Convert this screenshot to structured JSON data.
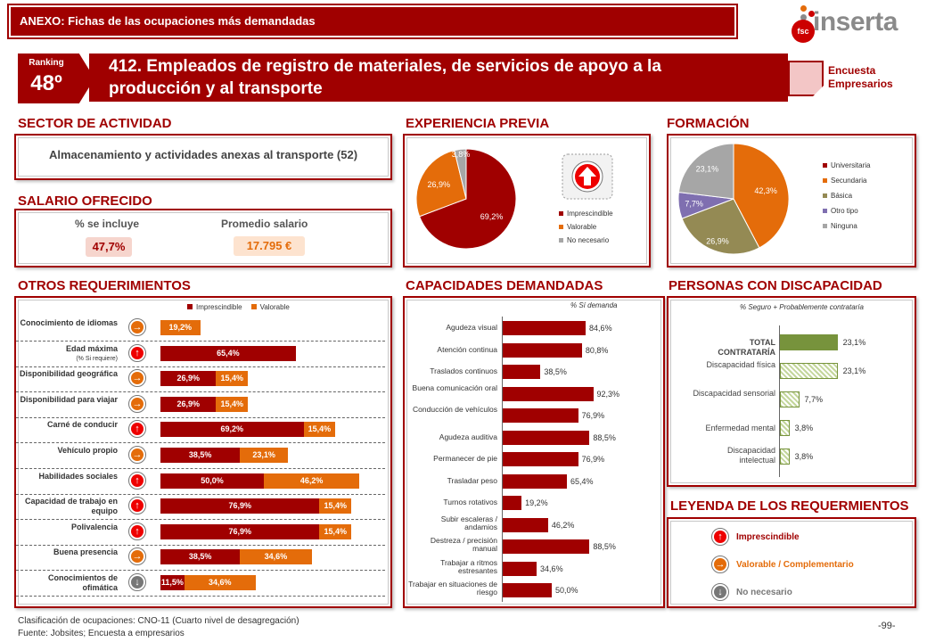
{
  "header": {
    "title": "ANEXO: Fichas de las ocupaciones más demandadas"
  },
  "logo": {
    "text": "inserta",
    "badge": "fsc"
  },
  "ranking": {
    "label": "Ranking",
    "value": "48º"
  },
  "occupation": {
    "title": "412. Empleados de registro de materiales, de servicios de apoyo a la producción y al transporte"
  },
  "survey_badge": {
    "line1": "Encuesta",
    "line2": "Empresarios"
  },
  "sections": {
    "sector": "SECTOR DE ACTIVIDAD",
    "experience": "EXPERIENCIA PREVIA",
    "training": "FORMACIÓN",
    "salary": "SALARIO OFRECIDO",
    "other_req": "OTROS REQUERIMIENTOS",
    "capacities": "CAPACIDADES DEMANDADAS",
    "disability": "PERSONAS CON DISCAPACIDAD",
    "legend": "LEYENDA DE LOS REQUERMIENTOS"
  },
  "sector": {
    "text": "Almacenamiento y actividades anexas al transporte (52)"
  },
  "salary": {
    "included_label": "% se incluye",
    "included_value": "47,7%",
    "avg_label": "Promedio salario",
    "avg_value": "17.795 €"
  },
  "colors": {
    "dark_red": "#a00000",
    "orange": "#e46c0a",
    "grey": "#a6a6a6",
    "olive": "#948a54",
    "purple": "#7f6fb0",
    "green": "#77933c"
  },
  "chart_data": [
    {
      "type": "pie",
      "title": "EXPERIENCIA PREVIA",
      "categories": [
        "Imprescindible",
        "Valorable",
        "No necesario"
      ],
      "values": [
        69.2,
        26.9,
        3.8
      ],
      "labels": [
        "69,2%",
        "26,9%",
        "3,8%"
      ],
      "colors": [
        "#a00000",
        "#e46c0a",
        "#a6a6a6"
      ]
    },
    {
      "type": "pie",
      "title": "FORMACIÓN",
      "categories": [
        "Universitaria",
        "Secundaria",
        "Básica",
        "Otro tipo",
        "Ninguna"
      ],
      "values": [
        0,
        42.3,
        26.9,
        7.7,
        23.1
      ],
      "labels": [
        "",
        "42,3%",
        "26,9%",
        "7,7%",
        "23,1%"
      ],
      "colors": [
        "#a00000",
        "#e46c0a",
        "#948a54",
        "#7f6fb0",
        "#a6a6a6"
      ]
    },
    {
      "type": "bar",
      "title": "OTROS REQUERIMIENTOS",
      "legend": [
        "Imprescindible",
        "Valorable"
      ],
      "categories": [
        "Conocimiento de idiomas",
        "Edad máxima",
        "Disponibilidad geográfica",
        "Disponibilidad para viajar",
        "Carné de conducir",
        "Vehículo propio",
        "Habilidades sociales",
        "Capacidad de trabajo en equipo",
        "Polivalencia",
        "Buena presencia",
        "Conocimientos de ofimática"
      ],
      "series": [
        {
          "name": "Imprescindible",
          "values": [
            0,
            65.4,
            26.9,
            26.9,
            69.2,
            38.5,
            50.0,
            76.9,
            76.9,
            38.5,
            11.5
          ],
          "labels": [
            "",
            "65,4%",
            "26,9%",
            "26,9%",
            "69,2%",
            "38,5%",
            "50,0%",
            "76,9%",
            "76,9%",
            "38,5%",
            "11,5%"
          ]
        },
        {
          "name": "Valorable",
          "values": [
            19.2,
            0,
            15.4,
            15.4,
            15.4,
            23.1,
            46.2,
            15.4,
            15.4,
            34.6,
            34.6
          ],
          "labels": [
            "19,2%",
            "",
            "15,4%",
            "15,4%",
            "15,4%",
            "23,1%",
            "46,2%",
            "15,4%",
            "15,4%",
            "34,6%",
            "34,6%"
          ]
        }
      ],
      "row_icons": [
        "valorable",
        "imprescindible",
        "valorable",
        "valorable",
        "imprescindible",
        "valorable",
        "imprescindible",
        "imprescindible",
        "imprescindible",
        "valorable",
        "no_necesario"
      ],
      "sublabels": [
        "",
        "(% Si requiere)",
        "",
        "",
        "",
        "",
        "",
        "",
        "",
        "",
        ""
      ]
    },
    {
      "type": "bar",
      "title": "CAPACIDADES DEMANDADAS",
      "note": "% Sí demanda",
      "categories": [
        "Agudeza visual",
        "Atención continua",
        "Traslados continuos",
        "Buena comunicación oral",
        "Conducción de vehículos",
        "Agudeza auditiva",
        "Permanecer de pie",
        "Trasladar peso",
        "Turnos rotativos",
        "Subir escaleras / andamios",
        "Destreza / precisión manual",
        "Trabajar a ritmos estresantes",
        "Trabajar en situaciones de riesgo"
      ],
      "values": [
        84.6,
        80.8,
        38.5,
        92.3,
        76.9,
        88.5,
        76.9,
        65.4,
        19.2,
        46.2,
        88.5,
        34.6,
        50.0
      ],
      "labels": [
        "84,6%",
        "80,8%",
        "38,5%",
        "92,3%",
        "76,9%",
        "88,5%",
        "76,9%",
        "65,4%",
        "19,2%",
        "46,2%",
        "88,5%",
        "34,6%",
        "50,0%"
      ]
    },
    {
      "type": "bar",
      "title": "PERSONAS CON DISCAPACIDAD",
      "note": "% Seguro + Probablemente contrataría",
      "categories": [
        "TOTAL CONTRATARÍA",
        "Discapacidad física",
        "Discapacidad sensorial",
        "Enfermedad mental",
        "Discapacidad intelectual"
      ],
      "values": [
        23.1,
        23.1,
        7.7,
        3.8,
        3.8
      ],
      "labels": [
        "23,1%",
        "23,1%",
        "7,7%",
        "3,8%",
        "3,8%"
      ]
    }
  ],
  "legend_items": [
    {
      "label": "Imprescindible",
      "icon": "up-arrow-icon"
    },
    {
      "label": "Valorable / Complementario",
      "icon": "right-arrow-icon"
    },
    {
      "label": "No necesario",
      "icon": "down-arrow-icon"
    }
  ],
  "footer": {
    "line1": "Clasificación de ocupaciones: CNO-11 (Cuarto nivel de desagregación)",
    "line2": "Fuente: Jobsites; Encuesta a empresarios",
    "page": "-99-"
  }
}
